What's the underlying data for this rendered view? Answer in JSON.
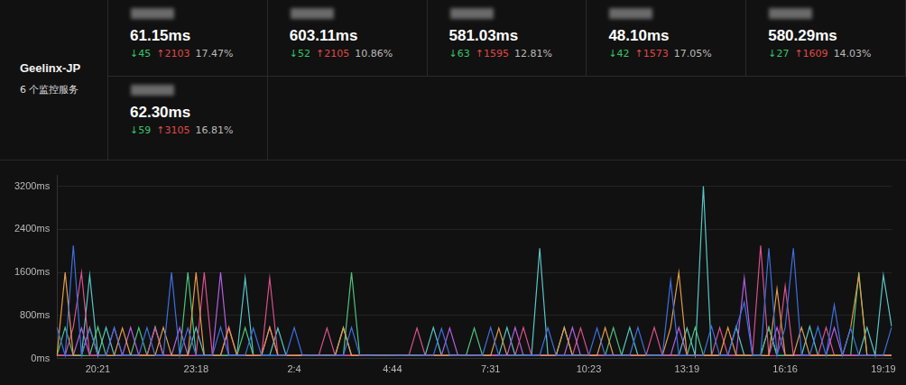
{
  "header": {
    "title": "Geelinx-JP",
    "subtitle": "6 个监控服务"
  },
  "cards": [
    {
      "latency": "61.15ms",
      "down": "↓45",
      "up": "↑2103",
      "loss": "17.47%"
    },
    {
      "latency": "603.11ms",
      "down": "↓52",
      "up": "↑2105",
      "loss": "10.86%"
    },
    {
      "latency": "581.03ms",
      "down": "↓63",
      "up": "↑1595",
      "loss": "12.81%"
    },
    {
      "latency": "48.10ms",
      "down": "↓42",
      "up": "↑1573",
      "loss": "17.05%"
    },
    {
      "latency": "580.29ms",
      "down": "↓27",
      "up": "↑1609",
      "loss": "14.03%"
    },
    {
      "latency": "62.30ms",
      "down": "↓59",
      "up": "↑3105",
      "loss": "16.81%"
    }
  ],
  "chart_data": {
    "type": "line",
    "grid": true,
    "ylim": [
      0,
      3400
    ],
    "yticks": [
      {
        "value": 0,
        "label": "0ms"
      },
      {
        "value": 800,
        "label": "800ms"
      },
      {
        "value": 1600,
        "label": "1600ms"
      },
      {
        "value": 2400,
        "label": "2400ms"
      },
      {
        "value": 3200,
        "label": "3200ms"
      }
    ],
    "categories": [
      null,
      null,
      null,
      null,
      null,
      "20:21",
      null,
      null,
      null,
      null,
      null,
      null,
      null,
      null,
      null,
      null,
      null,
      "23:18",
      null,
      null,
      null,
      null,
      null,
      null,
      null,
      null,
      null,
      null,
      null,
      "2:4",
      null,
      null,
      null,
      null,
      null,
      null,
      null,
      null,
      null,
      null,
      null,
      "4:44",
      null,
      null,
      null,
      null,
      null,
      null,
      null,
      null,
      null,
      null,
      null,
      "7:31",
      null,
      null,
      null,
      null,
      null,
      null,
      null,
      null,
      null,
      null,
      null,
      "10:23",
      null,
      null,
      null,
      null,
      null,
      null,
      null,
      null,
      null,
      null,
      null,
      "13:19",
      null,
      null,
      null,
      null,
      null,
      null,
      null,
      null,
      null,
      null,
      null,
      "16:16",
      null,
      null,
      null,
      null,
      null,
      null,
      null,
      null,
      null,
      null,
      null,
      "19:19",
      null
    ],
    "series": [
      {
        "color": "#3d6fe0",
        "values": [
          580,
          60,
          2100,
          58,
          560,
          62,
          59,
          580,
          61,
          57,
          60,
          575,
          58,
          62,
          1600,
          59,
          570,
          61,
          58,
          60,
          585,
          57,
          61,
          60,
          570,
          59,
          62,
          58,
          60,
          575,
          58,
          61,
          60,
          59,
          62,
          58,
          580,
          60,
          57,
          61,
          59,
          62,
          58,
          60,
          61,
          57,
          59,
          560,
          62,
          58,
          60,
          61,
          59,
          580,
          58,
          62,
          60,
          57,
          61,
          59,
          575,
          60,
          58,
          62,
          59,
          61,
          570,
          58,
          60,
          62,
          59,
          580,
          61,
          58,
          60,
          1450,
          57,
          62,
          59,
          61,
          600,
          58,
          62,
          570,
          1050,
          60,
          59,
          2050,
          61,
          580,
          2050,
          58,
          62,
          590,
          60,
          1000,
          59,
          570,
          61,
          58,
          62,
          60,
          580
        ]
      },
      {
        "color": "#e39a48",
        "values": [
          57,
          1600,
          59,
          61,
          580,
          60,
          58,
          62,
          570,
          59,
          61,
          60,
          58,
          580,
          62,
          59,
          61,
          1600,
          60,
          58,
          62,
          570,
          59,
          61,
          58,
          60,
          585,
          62,
          59,
          57,
          61,
          58,
          60,
          62,
          59,
          570,
          58,
          61,
          60,
          62,
          58,
          61,
          59,
          60,
          62,
          58,
          61,
          59,
          60,
          57,
          62,
          59,
          61,
          58,
          570,
          60,
          59,
          62,
          58,
          61,
          59,
          62,
          580,
          58,
          61,
          60,
          59,
          575,
          62,
          58,
          60,
          59,
          62,
          58,
          61,
          580,
          1600,
          59,
          62,
          58,
          61,
          59,
          580,
          60,
          62,
          58,
          61,
          59,
          1300,
          62,
          58,
          580,
          60,
          62,
          59,
          61,
          58,
          570,
          1550,
          62,
          59,
          61,
          58
        ]
      },
      {
        "color": "#d9508e",
        "values": [
          60,
          62,
          590,
          1600,
          59,
          61,
          58,
          570,
          60,
          62,
          59,
          61,
          570,
          60,
          58,
          62,
          59,
          61,
          1600,
          58,
          60,
          590,
          61,
          58,
          62,
          59,
          1500,
          60,
          58,
          61,
          62,
          59,
          60,
          570,
          58,
          61,
          62,
          59,
          60,
          58,
          61,
          59,
          62,
          58,
          570,
          60,
          61,
          59,
          62,
          58,
          60,
          62,
          58,
          61,
          59,
          60,
          62,
          580,
          58,
          61,
          59,
          62,
          60,
          58,
          570,
          61,
          59,
          62,
          60,
          58,
          61,
          59,
          62,
          580,
          60,
          58,
          61,
          59,
          62,
          60,
          58,
          575,
          61,
          59,
          62,
          60,
          2100,
          58,
          61,
          1350,
          59,
          62,
          60,
          58,
          580,
          61,
          59,
          62,
          60,
          58,
          61,
          59,
          62
        ]
      },
      {
        "color": "#b35fe0",
        "values": [
          59,
          58,
          61,
          570,
          60,
          62,
          58,
          59,
          61,
          580,
          62,
          58,
          60,
          61,
          59,
          575,
          62,
          58,
          61,
          59,
          1600,
          58,
          60,
          62,
          59,
          61,
          580,
          58,
          60,
          62,
          59,
          61,
          58,
          60,
          62,
          59,
          61,
          58,
          60,
          59,
          62,
          58,
          61,
          60,
          59,
          62,
          58,
          61,
          570,
          60,
          58,
          61,
          59,
          62,
          60,
          58,
          580,
          61,
          59,
          62,
          60,
          58,
          61,
          580,
          59,
          62,
          60,
          58,
          61,
          59,
          62,
          60,
          58,
          61,
          59,
          62,
          580,
          60,
          58,
          61,
          59,
          62,
          60,
          58,
          1500,
          61,
          59,
          62,
          580,
          60,
          58,
          61,
          59,
          62,
          60,
          575,
          58,
          61,
          59,
          62,
          60,
          58,
          61
        ]
      },
      {
        "color": "#4cc27e",
        "values": [
          62,
          580,
          60,
          58,
          61,
          590,
          62,
          59,
          60,
          58,
          575,
          61,
          59,
          62,
          60,
          58,
          1600,
          61,
          59,
          62,
          60,
          58,
          61,
          575,
          59,
          62,
          60,
          58,
          61,
          59,
          62,
          60,
          58,
          61,
          59,
          62,
          1600,
          60,
          58,
          61,
          59,
          62,
          60,
          58,
          61,
          59,
          62,
          60,
          58,
          61,
          59,
          570,
          60,
          58,
          62,
          61,
          59,
          60,
          58,
          62,
          61,
          59,
          58,
          60,
          62,
          59,
          61,
          58,
          575,
          60,
          62,
          59,
          61,
          58,
          60,
          62,
          59,
          61,
          580,
          60,
          58,
          62,
          59,
          61,
          60,
          58,
          62,
          585,
          61,
          59,
          60,
          62,
          58,
          61,
          59,
          62,
          60,
          58,
          1600,
          61,
          59,
          62,
          60
        ]
      },
      {
        "color": "#58c6c6",
        "values": [
          61,
          59,
          62,
          60,
          1550,
          58,
          580,
          61,
          59,
          62,
          60,
          58,
          590,
          61,
          59,
          62,
          60,
          580,
          58,
          61,
          59,
          62,
          60,
          1500,
          61,
          58,
          62,
          570,
          60,
          59,
          61,
          58,
          62,
          60,
          59,
          580,
          61,
          58,
          60,
          62,
          60,
          59,
          61,
          62,
          58,
          60,
          580,
          59,
          61,
          62,
          58,
          60,
          61,
          59,
          62,
          580,
          58,
          60,
          61,
          2050,
          62,
          59,
          580,
          60,
          61,
          58,
          62,
          59,
          61,
          60,
          580,
          62,
          58,
          61,
          59,
          60,
          62,
          570,
          61,
          3200,
          60,
          58,
          61,
          590,
          62,
          59,
          60,
          580,
          58,
          61,
          62,
          59,
          600,
          60,
          58,
          61,
          62,
          59,
          60,
          580,
          61,
          1550,
          600
        ]
      }
    ]
  }
}
